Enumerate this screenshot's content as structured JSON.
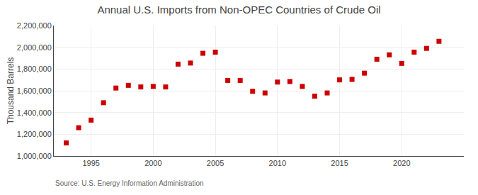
{
  "chart_data": {
    "type": "scatter",
    "title": "Annual U.S. Imports from Non-OPEC Countries of Crude Oil",
    "ylabel": "Thousand Barrels",
    "annotations": [
      "Source: U.S. Energy Information Administration"
    ],
    "x": [
      1993,
      1994,
      1995,
      1996,
      1997,
      1998,
      1999,
      2000,
      2001,
      2002,
      2003,
      2004,
      2005,
      2006,
      2007,
      2008,
      2009,
      2010,
      2011,
      2012,
      2013,
      2014,
      2015,
      2016,
      2017,
      2018,
      2019,
      2020,
      2021,
      2022,
      2023
    ],
    "values": [
      1120000,
      1260000,
      1330000,
      1490000,
      1625000,
      1650000,
      1635000,
      1640000,
      1635000,
      1845000,
      1855000,
      1945000,
      1955000,
      1695000,
      1695000,
      1595000,
      1580000,
      1680000,
      1685000,
      1640000,
      1550000,
      1580000,
      1700000,
      1705000,
      1762000,
      1890000,
      1930000,
      1852000,
      1955000,
      1990000,
      2055000
    ],
    "color": "#cc0000",
    "marker": "square",
    "xlim": [
      1992,
      2025
    ],
    "xticks": [
      1995,
      2000,
      2005,
      2010,
      2015,
      2020
    ],
    "ylim": [
      1000000,
      2200000
    ],
    "yticks": [
      {
        "value": 1000000,
        "label": "1,000,000"
      },
      {
        "value": 1200000,
        "label": "1,200,000"
      },
      {
        "value": 1400000,
        "label": "1,400,000"
      },
      {
        "value": 1600000,
        "label": "1,600,000"
      },
      {
        "value": 1800000,
        "label": "1,800,000"
      },
      {
        "value": 2000000,
        "label": "2,000,000"
      },
      {
        "value": 2200000,
        "label": "2,200,000"
      }
    ],
    "grid": true
  }
}
